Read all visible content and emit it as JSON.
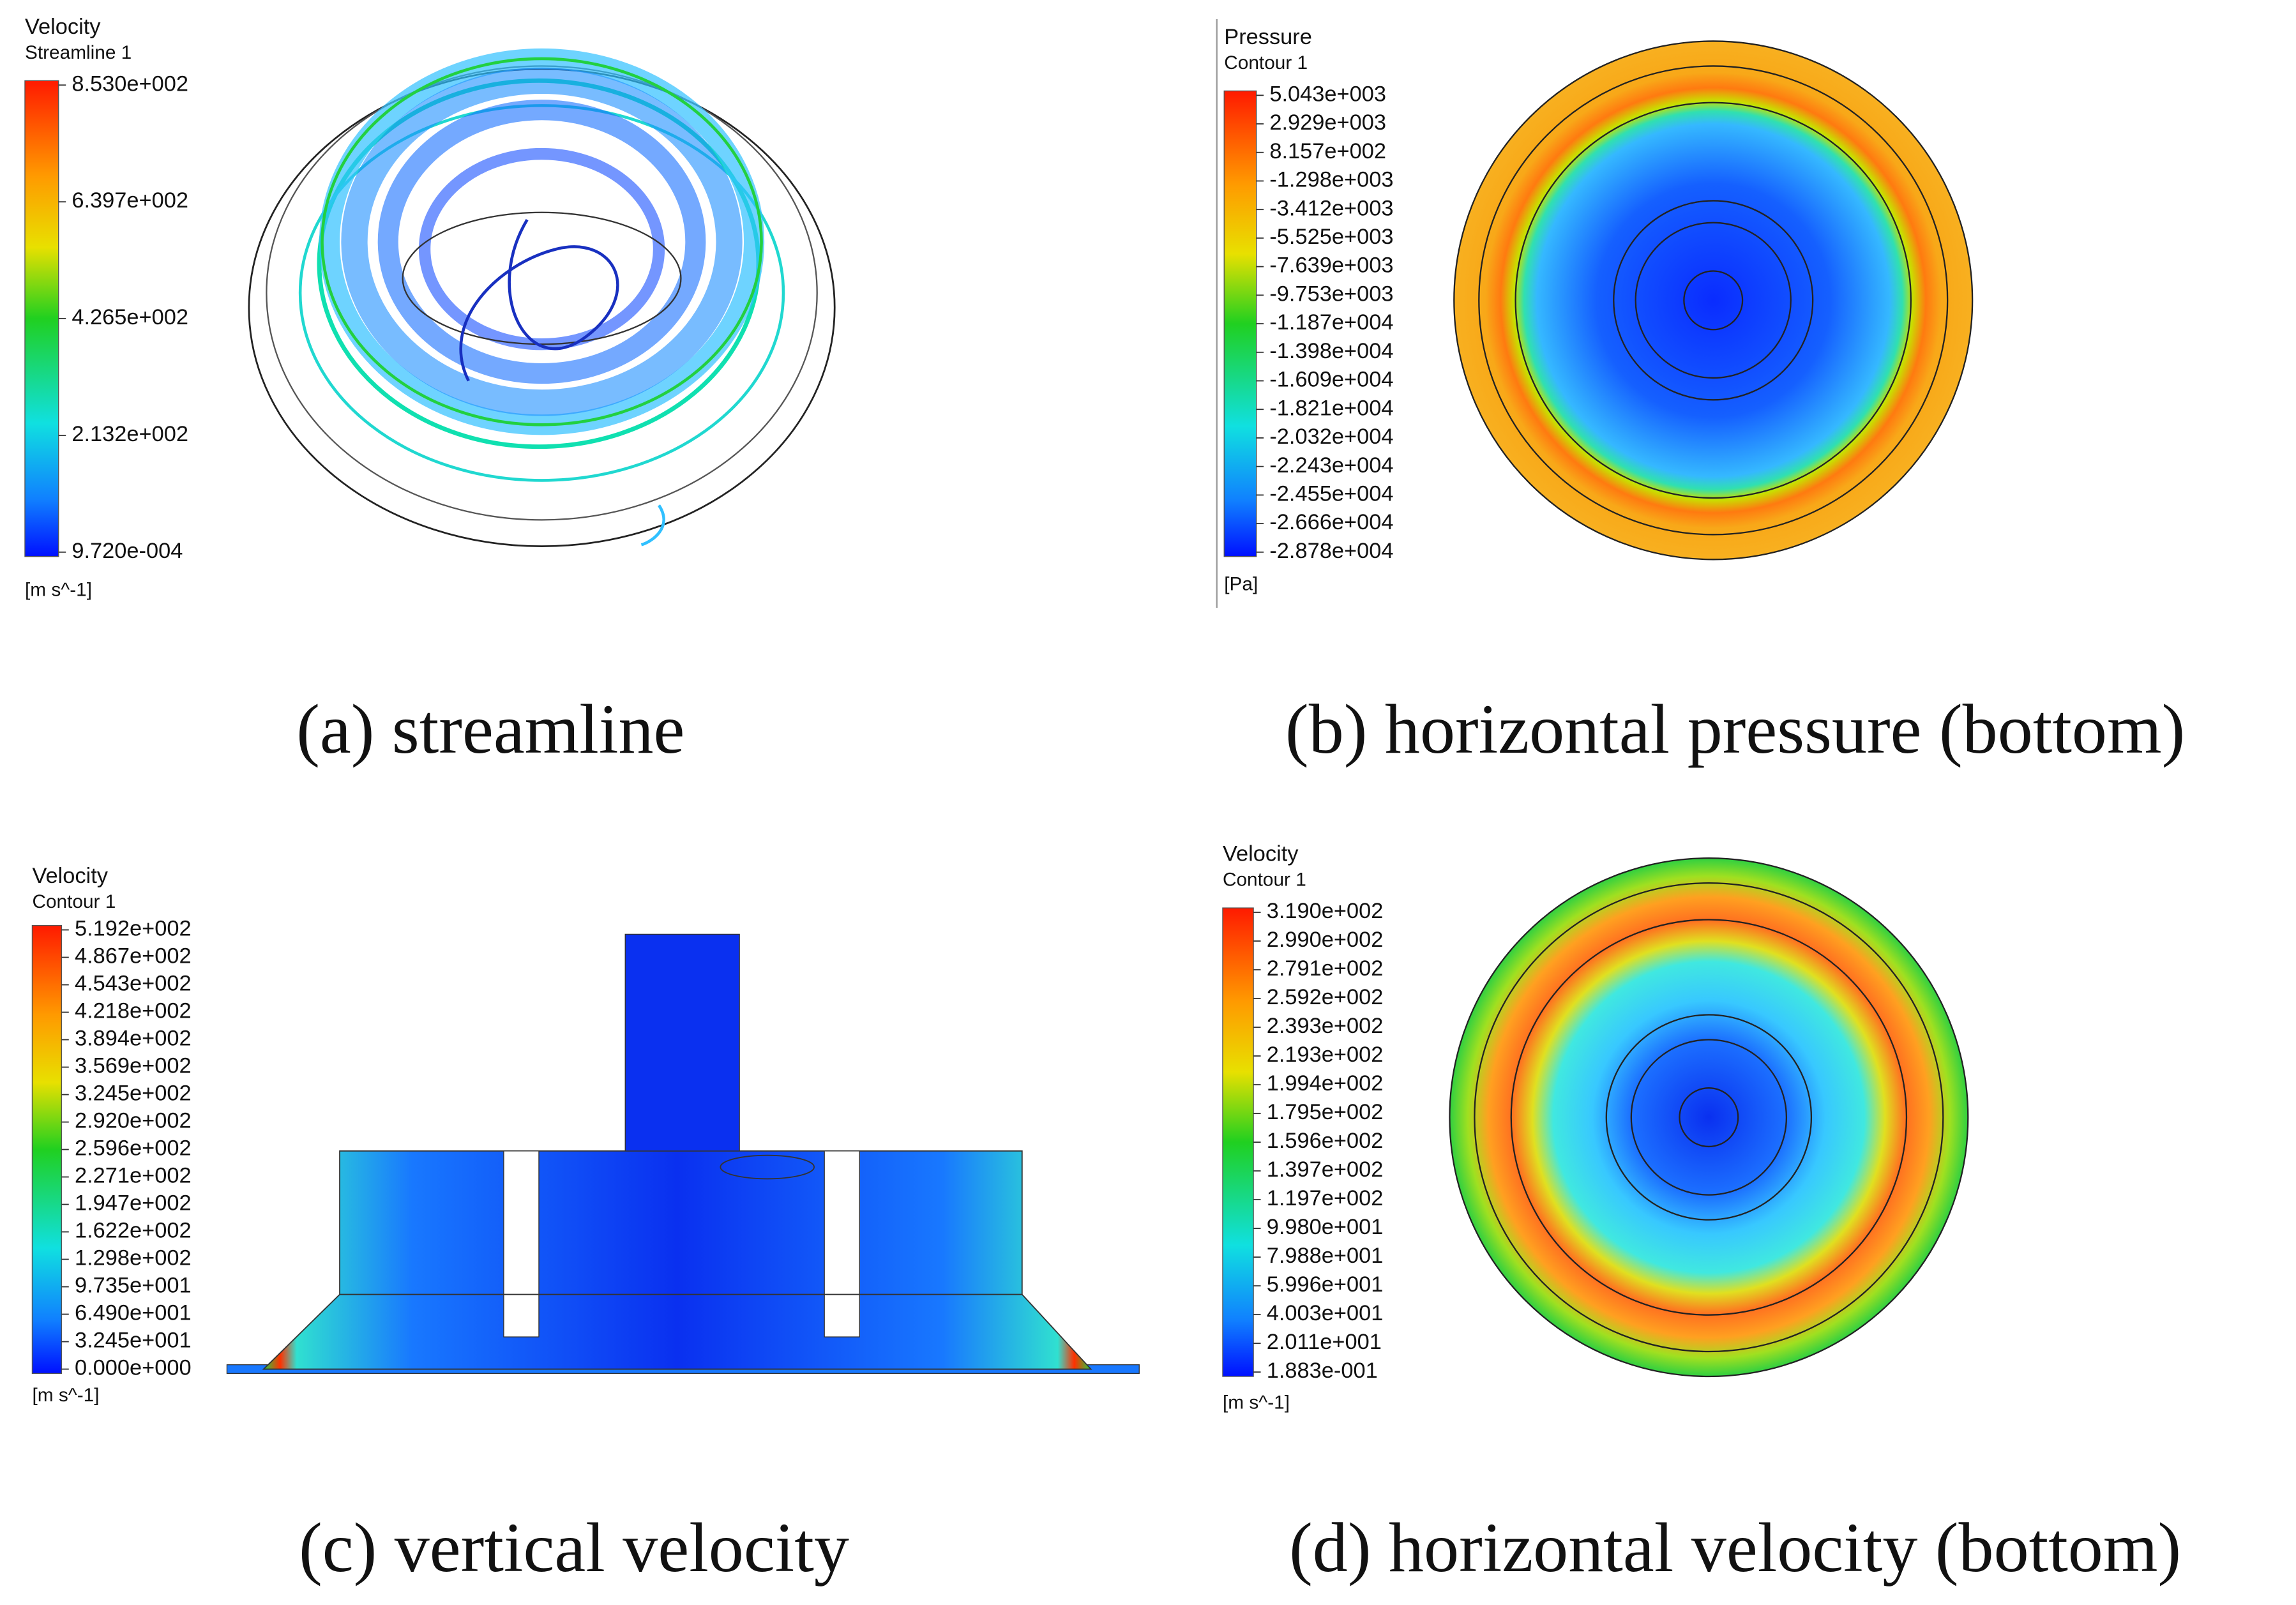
{
  "panels": [
    {
      "title": "Velocity",
      "subtitle": "Streamline 1",
      "ticks": [
        "8.530e+002",
        "6.397e+002",
        "4.265e+002",
        "2.132e+002",
        "9.720e-004"
      ],
      "unit": "[m s^-1]",
      "caption": "(a) streamline"
    },
    {
      "title": "Pressure",
      "subtitle": "Contour 1",
      "ticks": [
        "5.043e+003",
        "2.929e+003",
        "8.157e+002",
        "-1.298e+003",
        "-3.412e+003",
        "-5.525e+003",
        "-7.639e+003",
        "-9.753e+003",
        "-1.187e+004",
        "-1.398e+004",
        "-1.609e+004",
        "-1.821e+004",
        "-2.032e+004",
        "-2.243e+004",
        "-2.455e+004",
        "-2.666e+004",
        "-2.878e+004"
      ],
      "unit": "[Pa]",
      "caption": "(b) horizontal pressure (bottom)"
    },
    {
      "title": "Velocity",
      "subtitle": "Contour 1",
      "ticks": [
        "5.192e+002",
        "4.867e+002",
        "4.543e+002",
        "4.218e+002",
        "3.894e+002",
        "3.569e+002",
        "3.245e+002",
        "2.920e+002",
        "2.596e+002",
        "2.271e+002",
        "1.947e+002",
        "1.622e+002",
        "1.298e+002",
        "9.735e+001",
        "6.490e+001",
        "3.245e+001",
        "0.000e+000"
      ],
      "unit": "[m s^-1]",
      "caption": "(c) vertical velocity"
    },
    {
      "title": "Velocity",
      "subtitle": "Contour 1",
      "ticks": [
        "3.190e+002",
        "2.990e+002",
        "2.791e+002",
        "2.592e+002",
        "2.393e+002",
        "2.193e+002",
        "1.994e+002",
        "1.795e+002",
        "1.596e+002",
        "1.397e+002",
        "1.197e+002",
        "9.980e+001",
        "7.988e+001",
        "5.996e+001",
        "4.003e+001",
        "2.011e+001",
        "1.883e-001"
      ],
      "unit": "[m s^-1]",
      "caption": "(d) horizontal velocity (bottom)"
    }
  ]
}
